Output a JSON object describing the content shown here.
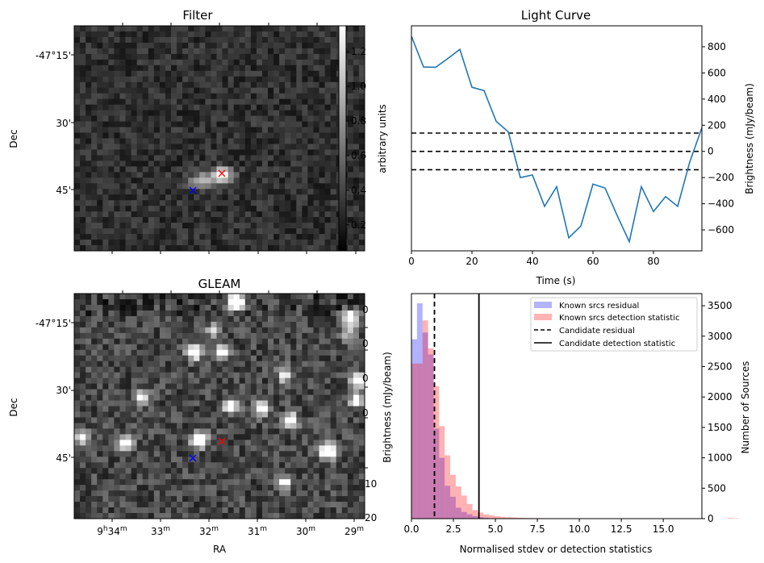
{
  "chart_data": [
    {
      "id": "filter",
      "type": "heatmap",
      "title": "Filter",
      "ylabel": "Dec",
      "xlabel": "",
      "ytick_labels": [
        "-47°15'",
        "30'",
        "45'"
      ],
      "colormap": "gray",
      "colorbar": {
        "label": "arbitrary units",
        "tick_labels": [
          "0.2",
          "0.4",
          "0.6",
          "0.8",
          "1.0",
          "1.2"
        ],
        "range": [
          0.05,
          1.35
        ]
      },
      "markers": [
        {
          "label": "red-cross",
          "color": "#ff0000",
          "symbol": "x"
        },
        {
          "label": "blue-cross",
          "color": "#0000ff",
          "symbol": "x"
        }
      ],
      "annotation": "bright elongated source near centre"
    },
    {
      "id": "light_curve",
      "type": "line",
      "title": "Light Curve",
      "xlabel": "Time (s)",
      "ylabel": "Brightness (mJy/beam)",
      "xlim": [
        0,
        96
      ],
      "ylim": [
        -760,
        960
      ],
      "xticks": [
        0,
        20,
        40,
        60,
        80
      ],
      "yticks": [
        -600,
        -400,
        -200,
        0,
        200,
        400,
        600,
        800
      ],
      "ytick_labels": [
        "−600",
        "−400",
        "−200",
        "0",
        "200",
        "400",
        "600",
        "800"
      ],
      "series": [
        {
          "name": "light curve",
          "color": "#1f77b4",
          "x": [
            0,
            4,
            8,
            12,
            16,
            20,
            24,
            28,
            32,
            36,
            40,
            44,
            48,
            52,
            56,
            60,
            64,
            68,
            72,
            76,
            80,
            84,
            88,
            92,
            96
          ],
          "y": [
            880,
            645,
            643,
            710,
            780,
            490,
            465,
            230,
            150,
            -200,
            -180,
            -420,
            -270,
            -660,
            -570,
            -250,
            -280,
            -490,
            -690,
            -270,
            -460,
            -345,
            -420,
            -80,
            180
          ]
        }
      ],
      "hlines": [
        {
          "y": 140,
          "style": "dashed",
          "color": "#000000"
        },
        {
          "y": 0,
          "style": "dashed",
          "color": "#000000"
        },
        {
          "y": -140,
          "style": "dashed",
          "color": "#000000"
        }
      ],
      "grid": false
    },
    {
      "id": "gleam",
      "type": "heatmap",
      "title": "GLEAM",
      "xlabel": "RA",
      "ylabel": "Dec",
      "xtick_labels": [
        {
          "main": "9",
          "sup1": "h",
          "main2": "34",
          "sup2": "m"
        },
        {
          "main": "33",
          "sup1": "m"
        },
        {
          "main": "32",
          "sup1": "m"
        },
        {
          "main": "31",
          "sup1": "m"
        },
        {
          "main": "30",
          "sup1": "m"
        },
        {
          "main": "29",
          "sup1": "m"
        }
      ],
      "ytick_labels": [
        "-47°15'",
        "30'",
        "45'"
      ],
      "overlapping_right_labels": [
        "0",
        "0",
        "0",
        "0",
        "10",
        "20"
      ],
      "colormap": "gray",
      "markers": [
        {
          "label": "red-cross",
          "color": "#ff0000",
          "symbol": "x"
        },
        {
          "label": "blue-cross",
          "color": "#0000ff",
          "symbol": "x"
        }
      ]
    },
    {
      "id": "histogram",
      "type": "bar",
      "title": "",
      "xlabel": "Normalised stdev or detection statistics",
      "ylabel_left": "Brightness (mJy/beam)",
      "ylabel": "Number of Sources",
      "xlim": [
        0,
        17.3
      ],
      "ylim": [
        0,
        3700
      ],
      "xticks": [
        0,
        2.5,
        5,
        7.5,
        10,
        12.5,
        15
      ],
      "xtick_labels": [
        "0.0",
        "2.5",
        "5.0",
        "7.5",
        "10.0",
        "12.5",
        "15.0"
      ],
      "yticks": [
        0,
        500,
        1000,
        1500,
        2000,
        2500,
        3000,
        3500
      ],
      "bin_width": 0.33,
      "series": [
        {
          "name": "Known srcs residual",
          "color": "#0000ff",
          "alpha": 0.3,
          "values": [
            2950,
            3540,
            3060,
            2700,
            1480,
            1000,
            540,
            360,
            180,
            110,
            70,
            40,
            25,
            15,
            8,
            5
          ]
        },
        {
          "name": "Known srcs detection statistic",
          "color": "#ff0000",
          "alpha": 0.3,
          "values": [
            2550,
            2550,
            3260,
            2800,
            2180,
            1520,
            1040,
            720,
            530,
            380,
            240,
            140,
            100,
            70,
            55,
            40,
            30,
            25,
            20,
            15,
            12,
            10,
            8,
            8,
            6,
            5,
            5,
            4,
            3,
            3,
            2,
            2,
            2,
            2,
            2,
            2,
            1,
            1,
            1,
            1,
            1,
            1,
            1,
            1,
            1,
            1,
            1,
            1,
            1,
            1,
            1,
            1,
            1,
            1,
            1,
            0,
            0,
            12,
            8
          ]
        }
      ],
      "vlines": [
        {
          "name": "Candidate residual",
          "x": 1.37,
          "style": "dashed",
          "color": "#000000"
        },
        {
          "name": "Candidate detection statistic",
          "x": 4.02,
          "style": "solid",
          "color": "#000000"
        }
      ],
      "legend": {
        "placement": "top-right",
        "entries": [
          {
            "label": "Known srcs residual",
            "kind": "patch",
            "color": "#b3b3ff"
          },
          {
            "label": "Known srcs detection statistic",
            "kind": "patch",
            "color": "#ffb3b3"
          },
          {
            "label": "Candidate residual",
            "kind": "dashed"
          },
          {
            "label": "Candidate detection statistic",
            "kind": "solid"
          }
        ]
      }
    }
  ]
}
